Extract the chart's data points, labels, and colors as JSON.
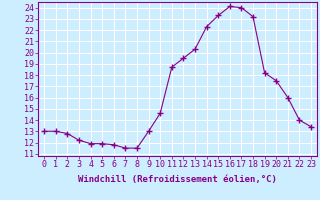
{
  "x": [
    0,
    1,
    2,
    3,
    4,
    5,
    6,
    7,
    8,
    9,
    10,
    11,
    12,
    13,
    14,
    15,
    16,
    17,
    18,
    19,
    20,
    21,
    22,
    23
  ],
  "y": [
    13.0,
    13.0,
    12.8,
    12.2,
    11.9,
    11.9,
    11.8,
    11.5,
    11.5,
    13.0,
    14.6,
    18.7,
    19.5,
    20.3,
    22.3,
    23.3,
    24.1,
    24.0,
    23.2,
    18.2,
    17.5,
    16.0,
    14.0,
    13.4
  ],
  "line_color": "#880088",
  "marker": "+",
  "bg_color": "#cceeff",
  "grid_color": "#ffffff",
  "xlabel": "Windchill (Refroidissement éolien,°C)",
  "ylabel_ticks": [
    11,
    12,
    13,
    14,
    15,
    16,
    17,
    18,
    19,
    20,
    21,
    22,
    23,
    24
  ],
  "ylim": [
    10.8,
    24.5
  ],
  "xlim": [
    -0.5,
    23.5
  ],
  "tick_color": "#880088",
  "font_size": 6,
  "xlabel_fontsize": 6.5
}
